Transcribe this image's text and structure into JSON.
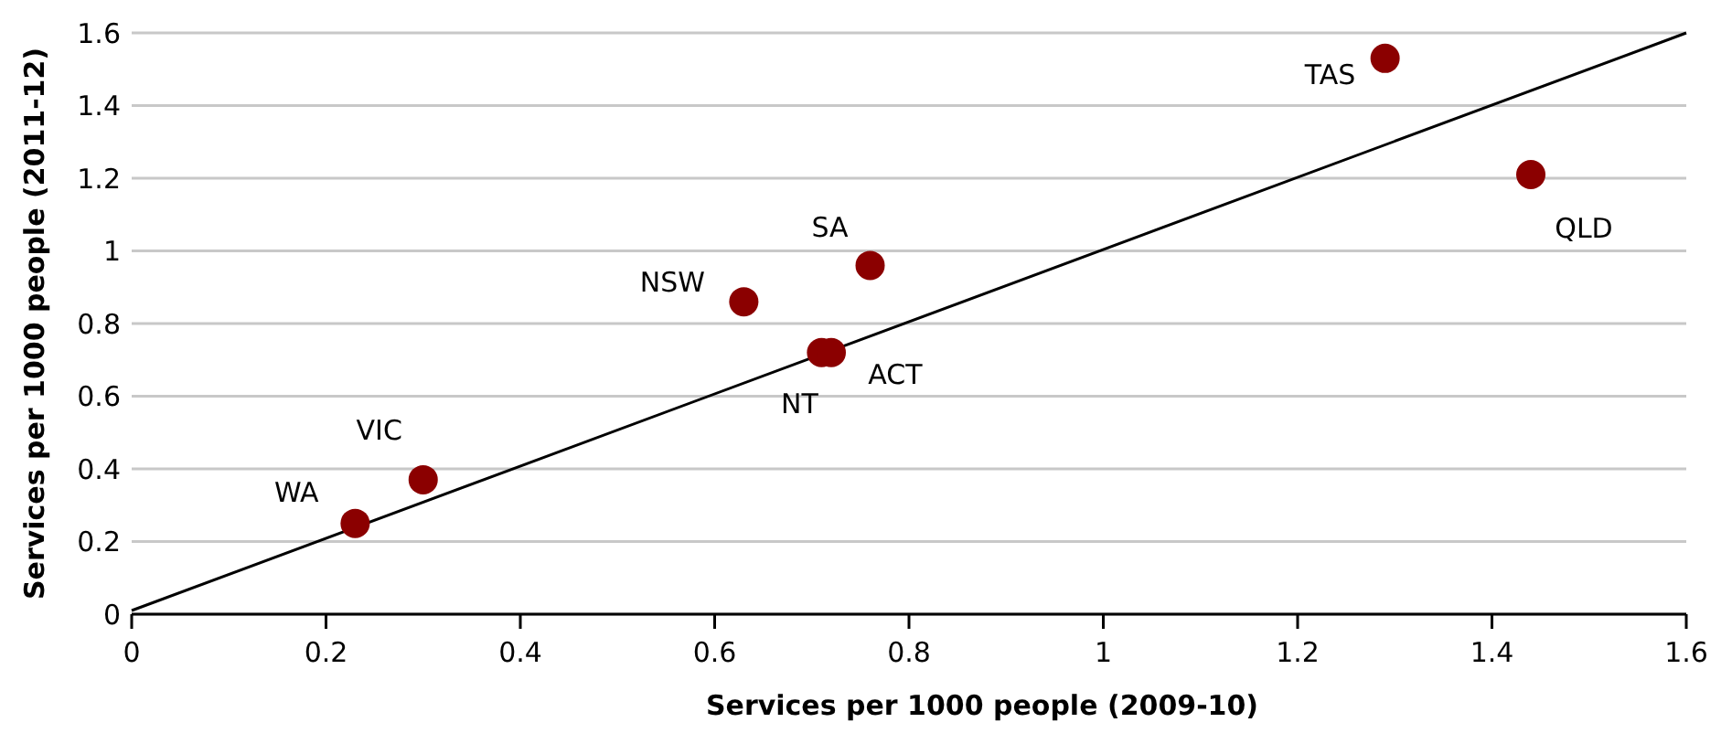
{
  "chart_data": {
    "type": "scatter",
    "xlabel": "Services per 1000 people (2009-10)",
    "ylabel": "Services per 1000 people (2011-12)",
    "series": [
      {
        "marker": "circle",
        "color": "#8b0000",
        "x": [
          0.23,
          0.3,
          0.63,
          0.71,
          0.72,
          0.76,
          1.29,
          1.44
        ],
        "values": [
          0.25,
          0.37,
          0.86,
          0.72,
          0.72,
          0.96,
          1.53,
          1.21
        ]
      },
      {
        "type": "line",
        "color": "#000000",
        "x": [
          0,
          1.6
        ],
        "values": [
          0.01,
          1.6
        ]
      }
    ],
    "annotations": [
      {
        "text": "WA",
        "x": 0.23,
        "y": 0.25
      },
      {
        "text": "VIC",
        "x": 0.3,
        "y": 0.37
      },
      {
        "text": "NSW",
        "x": 0.63,
        "y": 0.86
      },
      {
        "text": "NT",
        "x": 0.71,
        "y": 0.72
      },
      {
        "text": "ACT",
        "x": 0.72,
        "y": 0.72
      },
      {
        "text": "SA",
        "x": 0.76,
        "y": 0.96
      },
      {
        "text": "TAS",
        "x": 1.29,
        "y": 1.53
      },
      {
        "text": "QLD",
        "x": 1.44,
        "y": 1.21
      }
    ],
    "xlim": [
      0,
      1.6
    ],
    "xticks": [
      0,
      0.2,
      0.4,
      0.6,
      0.8,
      1,
      1.2,
      1.4,
      1.6
    ],
    "ylim": [
      0,
      1.6
    ],
    "yticks": [
      0,
      0.2,
      0.4,
      0.6,
      0.8,
      1,
      1.2,
      1.4,
      1.6
    ],
    "grid": "y"
  }
}
